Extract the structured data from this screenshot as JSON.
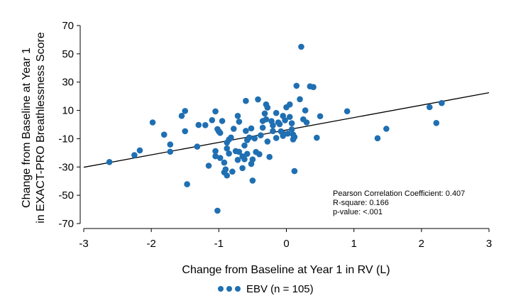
{
  "chart_data": {
    "type": "scatter",
    "xlabel": "Change from Baseline at Year 1 in RV (L)",
    "ylabel_lines": [
      "Change from Baseline at Year 1",
      "in EXACT-PRO Breathlessness Score"
    ],
    "xlim": [
      -3,
      3
    ],
    "ylim": [
      -70,
      70
    ],
    "x_ticks": [
      -3,
      -2,
      -1,
      0,
      1,
      2,
      3
    ],
    "x_tick_labels": [
      "-3",
      "-2",
      "-1",
      "0",
      "1",
      "2",
      "3"
    ],
    "y_ticks": [
      -70,
      -50,
      -30,
      -10,
      10,
      30,
      50,
      70
    ],
    "y_tick_labels": [
      "-70",
      "-50",
      "-30",
      "-10",
      "10",
      "30",
      "50",
      "70"
    ],
    "point_color": "#1f6fb2",
    "trend_line": {
      "x": [
        -3,
        3
      ],
      "y": [
        -30.2,
        22.5
      ]
    },
    "annotations": [
      "Pearson Correlation Coefficient: 0.407",
      "R-square: 0.166",
      "p-value: <.001"
    ],
    "legend": {
      "label": "EBV (n = 105)",
      "position": "bottom-center"
    },
    "series": [
      {
        "name": "EBV (n = 105)",
        "points": [
          [
            -2.62,
            -26.5
          ],
          [
            -2.25,
            -21.6
          ],
          [
            -2.17,
            -18.3
          ],
          [
            -1.98,
            1.5
          ],
          [
            -1.81,
            -7.1
          ],
          [
            -1.72,
            -14.1
          ],
          [
            -1.72,
            -19.2
          ],
          [
            -1.55,
            6.1
          ],
          [
            -1.5,
            9.6
          ],
          [
            -1.5,
            -4.7
          ],
          [
            -1.47,
            -42.2
          ],
          [
            -1.32,
            -15.6
          ],
          [
            -1.3,
            -0.3
          ],
          [
            -1.2,
            -0.4
          ],
          [
            -1.15,
            -29.1
          ],
          [
            -1.1,
            3.1
          ],
          [
            -1.05,
            -22.4
          ],
          [
            -1.05,
            9.3
          ],
          [
            -1.05,
            -18.8
          ],
          [
            -1.02,
            -60.9
          ],
          [
            -1.02,
            -3.2
          ],
          [
            -1.0,
            -4.8
          ],
          [
            -0.98,
            -5.9
          ],
          [
            -0.98,
            -23.6
          ],
          [
            -0.92,
            -26.9
          ],
          [
            -0.92,
            -33.8
          ],
          [
            -0.9,
            -31.7
          ],
          [
            -0.88,
            -12.8
          ],
          [
            -0.88,
            -16.9
          ],
          [
            -0.88,
            -36.0
          ],
          [
            -0.85,
            -20.5
          ],
          [
            -0.85,
            -10.6
          ],
          [
            -0.82,
            -9.2
          ],
          [
            -0.8,
            -33.3
          ],
          [
            -0.78,
            -3.0
          ],
          [
            -0.75,
            -18.8
          ],
          [
            -0.72,
            6.1
          ],
          [
            -0.72,
            -25.0
          ],
          [
            -0.7,
            2.0
          ],
          [
            -0.7,
            -19.3
          ],
          [
            -0.65,
            -22.5
          ],
          [
            -0.65,
            -30.8
          ],
          [
            -0.62,
            -14.8
          ],
          [
            -0.62,
            -24.5
          ],
          [
            -0.6,
            -4.5
          ],
          [
            -0.58,
            -11.0
          ],
          [
            -0.58,
            -20.7
          ],
          [
            -0.55,
            -9.2
          ],
          [
            -0.52,
            -2.7
          ],
          [
            -0.52,
            -27.8
          ],
          [
            -0.5,
            -39.6
          ],
          [
            -0.5,
            -24.7
          ],
          [
            -0.47,
            -9.8
          ],
          [
            -0.45,
            -19.4
          ],
          [
            -0.4,
            -21.0
          ],
          [
            -0.38,
            -7.6
          ],
          [
            -0.35,
            -2.2
          ],
          [
            -0.32,
            7.8
          ],
          [
            -0.3,
            14.2
          ],
          [
            -0.3,
            3.7
          ],
          [
            -0.28,
            -12.0
          ],
          [
            -0.25,
            -22.9
          ],
          [
            -0.22,
            2.4
          ],
          [
            -0.2,
            -4.6
          ],
          [
            -0.2,
            -0.6
          ],
          [
            -0.15,
            -9.5
          ],
          [
            -0.12,
            1.5
          ],
          [
            -0.1,
            0.3
          ],
          [
            -0.08,
            -4.8
          ],
          [
            -0.05,
            6.1
          ],
          [
            -0.05,
            -6.3
          ],
          [
            -0.02,
            3.0
          ],
          [
            0.0,
            12.2
          ],
          [
            0.02,
            -6.4
          ],
          [
            0.05,
            5.4
          ],
          [
            0.08,
            -3.4
          ],
          [
            0.1,
            -7.1
          ],
          [
            0.1,
            -10.5
          ],
          [
            0.12,
            -32.9
          ],
          [
            0.15,
            27.4
          ],
          [
            0.2,
            17.9
          ],
          [
            0.22,
            55.0
          ],
          [
            0.25,
            3.7
          ],
          [
            0.28,
            10.0
          ],
          [
            0.3,
            1.5
          ],
          [
            0.35,
            27.0
          ],
          [
            0.4,
            26.5
          ],
          [
            0.45,
            -9.3
          ],
          [
            0.5,
            5.9
          ],
          [
            0.9,
            9.4
          ],
          [
            1.35,
            -9.7
          ],
          [
            1.48,
            -3.0
          ],
          [
            2.12,
            12.3
          ],
          [
            2.22,
            1.1
          ],
          [
            2.3,
            15.2
          ],
          [
            -0.15,
            8.2
          ],
          [
            -0.28,
            12.0
          ],
          [
            -0.42,
            17.8
          ],
          [
            0.05,
            14.2
          ],
          [
            0.08,
            0.9
          ],
          [
            -0.95,
            2.5
          ],
          [
            -0.35,
            2.5
          ],
          [
            -0.6,
            16.7
          ],
          [
            0.12,
            -8.8
          ],
          [
            -0.05,
            -8.0
          ]
        ]
      }
    ]
  }
}
